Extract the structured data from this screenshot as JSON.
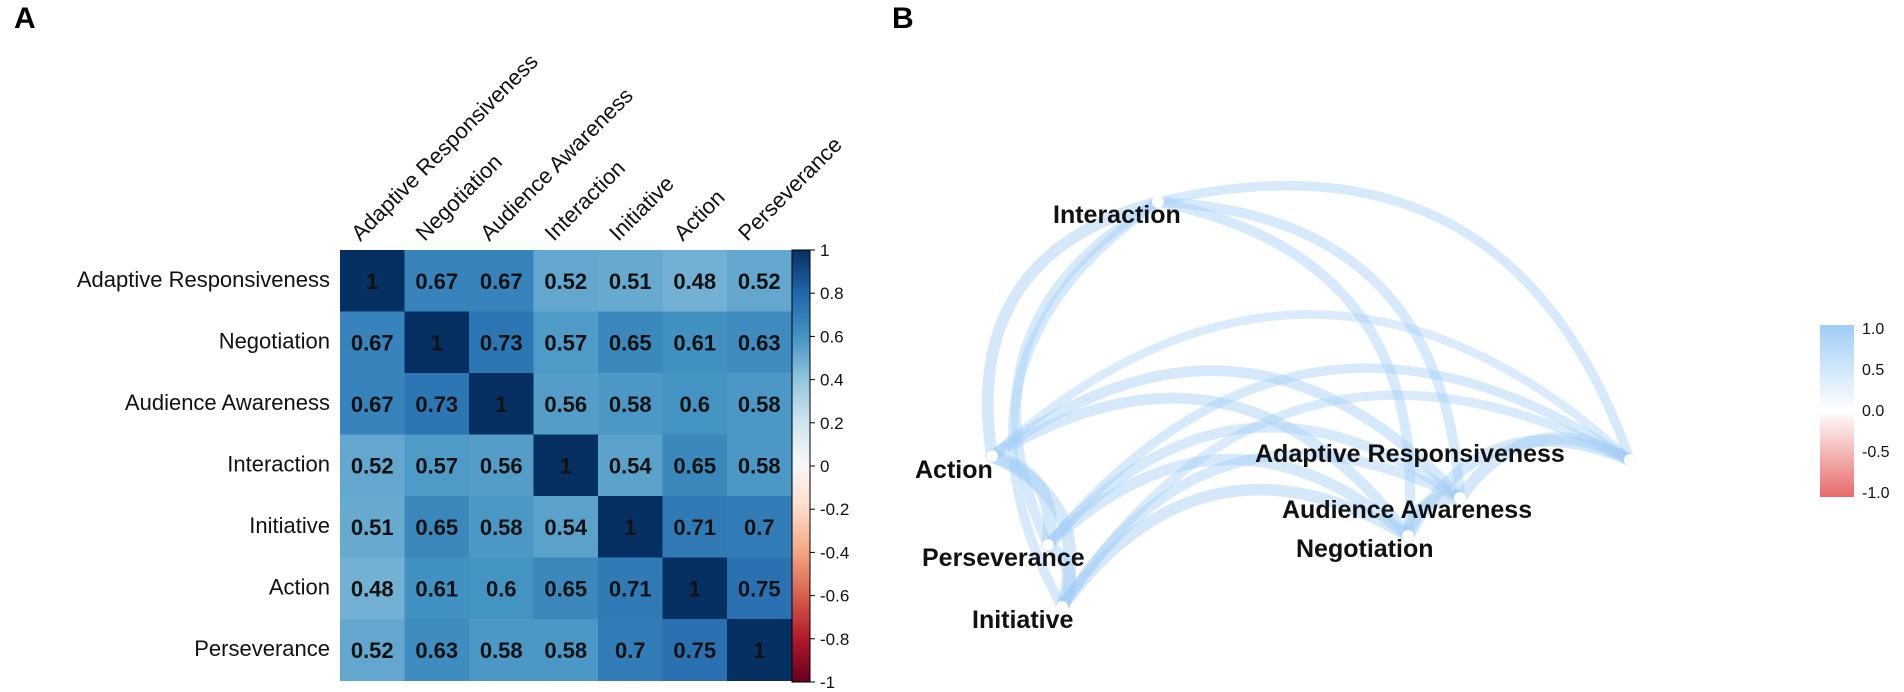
{
  "panels": {
    "a_label": "A",
    "b_label": "B"
  },
  "chart_data": [
    {
      "type": "heatmap",
      "title": "",
      "labels": [
        "Adaptive Responsiveness",
        "Negotiation",
        "Audience Awareness",
        "Interaction",
        "Initiative",
        "Action",
        "Perseverance"
      ],
      "values": [
        [
          1,
          0.67,
          0.67,
          0.52,
          0.51,
          0.48,
          0.52
        ],
        [
          0.67,
          1,
          0.73,
          0.57,
          0.65,
          0.61,
          0.63
        ],
        [
          0.67,
          0.73,
          1,
          0.56,
          0.58,
          0.6,
          0.58
        ],
        [
          0.52,
          0.57,
          0.56,
          1,
          0.54,
          0.65,
          0.58
        ],
        [
          0.51,
          0.65,
          0.58,
          0.54,
          1,
          0.71,
          0.7
        ],
        [
          0.48,
          0.61,
          0.6,
          0.65,
          0.71,
          1,
          0.75
        ],
        [
          0.52,
          0.63,
          0.58,
          0.58,
          0.7,
          0.75,
          1
        ]
      ],
      "colorbar": {
        "range": [
          -1,
          1
        ],
        "ticks": [
          "1",
          "0.8",
          "0.6",
          "0.4",
          "0.2",
          "0",
          "-0.2",
          "-0.4",
          "-0.6",
          "-0.8",
          "-1"
        ]
      }
    },
    {
      "type": "network",
      "nodes": [
        "Interaction",
        "Action",
        "Perseverance",
        "Initiative",
        "Adaptive Responsiveness",
        "Audience Awareness",
        "Negotiation"
      ],
      "edge_weights_from": "correlation matrix (all pairs)",
      "legend": {
        "range": [
          -1.0,
          1.0
        ],
        "ticks": [
          "1.0",
          "0.5",
          "0.0",
          "-0.5",
          "-1.0"
        ],
        "position": "right"
      }
    }
  ],
  "colors": {
    "heat_neg": "#67001f",
    "heat_zero": "#f7f7f7",
    "heat_pos": "#053061",
    "edge_pos": "#9fcdf5",
    "edge_neg": "#e86a6a",
    "node": "#ffffff"
  }
}
